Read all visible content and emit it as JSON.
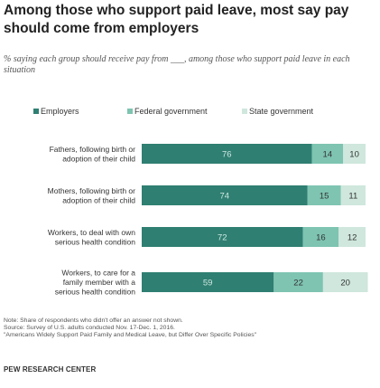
{
  "title": "Among those who support paid leave, most say pay should come from employers",
  "subtitle": "% saying each group should receive pay from ___, among those who support paid leave in each situation",
  "colors": {
    "employers": "#2f7f72",
    "federal": "#7ec4b1",
    "state": "#cfe7dd",
    "employers_text": "#cfe9e0",
    "dark_text": "#333333"
  },
  "chart_data": {
    "type": "bar",
    "orientation": "horizontal",
    "stacked": true,
    "categories": [
      "Fathers, following birth or adoption of their child",
      "Mothers, following birth or adoption of their child",
      "Workers, to deal with own serious health condition",
      "Workers, to care for a family member with a serious health condition"
    ],
    "category_lines": [
      [
        "Fathers, following birth or",
        "adoption of their child"
      ],
      [
        "Mothers, following birth or",
        "adoption of their child"
      ],
      [
        "Workers, to deal with own",
        "serious health condition"
      ],
      [
        "Workers, to care for a",
        "family member with a",
        "serious health condition"
      ]
    ],
    "series": [
      {
        "name": "Employers",
        "values": [
          76,
          74,
          72,
          59
        ]
      },
      {
        "name": "Federal government",
        "values": [
          14,
          15,
          16,
          22
        ]
      },
      {
        "name": "State government",
        "values": [
          10,
          11,
          12,
          20
        ]
      }
    ],
    "xlim": [
      0,
      100
    ],
    "legend_position": "top",
    "grid": false
  },
  "footer": {
    "note": "Note: Share of respondents who didn't offer an answer not shown.",
    "source": "Source: Survey of U.S. adults conducted Nov. 17-Dec. 1, 2016.",
    "report": "\"Americans Widely Support Paid Family and Medical Leave, but Differ Over Specific Policies\"",
    "brand": "PEW RESEARCH CENTER"
  }
}
